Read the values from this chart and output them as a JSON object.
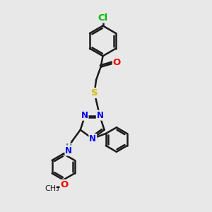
{
  "bg_color": "#e8e8e8",
  "bond_color": "#1a1a1a",
  "line_width": 1.8,
  "atom_colors": {
    "N": "#0000ee",
    "O": "#ee0000",
    "S": "#ccbb00",
    "Cl": "#00bb00",
    "H": "#448888",
    "C": "#1a1a1a"
  },
  "font_size": 8.5
}
